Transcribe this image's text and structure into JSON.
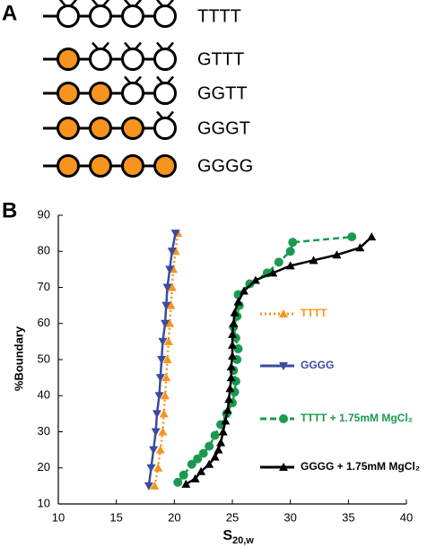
{
  "panel_a": {
    "label": "A",
    "rows": [
      {
        "label": "TTTT",
        "filled": [
          false,
          false,
          false,
          false
        ]
      },
      {
        "label": "GTTT",
        "filled": [
          true,
          false,
          false,
          false
        ]
      },
      {
        "label": "GGTT",
        "filled": [
          true,
          true,
          false,
          false
        ]
      },
      {
        "label": "GGGT",
        "filled": [
          true,
          true,
          true,
          false
        ]
      },
      {
        "label": "GGGG",
        "filled": [
          true,
          true,
          true,
          true
        ]
      }
    ],
    "fill_color": "#f7941d"
  },
  "panel_b": {
    "label": "B"
  },
  "chart_data": {
    "type": "line",
    "ylabel": "%Boundary",
    "xlabel": "S",
    "xlabel_sub": "20,w",
    "xlim": [
      10,
      40
    ],
    "xticks": [
      10,
      15,
      20,
      25,
      30,
      35,
      40
    ],
    "ylim": [
      10,
      90
    ],
    "yticks": [
      10,
      20,
      30,
      40,
      50,
      60,
      70,
      80,
      90
    ],
    "legend": "right",
    "series": [
      {
        "name": "TTTT",
        "color": "#f7941d",
        "marker": "triangle",
        "line": "dotted",
        "x": [
          18.3,
          18.6,
          18.8,
          19.0,
          19.1,
          19.2,
          19.3,
          19.4,
          19.5,
          19.6,
          19.7,
          19.8,
          19.9,
          20.1,
          20.3
        ],
        "values": [
          15,
          20,
          25,
          30,
          35,
          40,
          45,
          50,
          55,
          60,
          65,
          70,
          75,
          80,
          85
        ]
      },
      {
        "name": "GGGG",
        "color": "#3b4ba0",
        "marker": "triangle-down",
        "line": "solid",
        "x": [
          17.8,
          18.0,
          18.2,
          18.4,
          18.5,
          18.7,
          18.8,
          18.9,
          19.0,
          19.2,
          19.3,
          19.4,
          19.6,
          19.8,
          20.1
        ],
        "values": [
          15,
          20,
          25,
          30,
          35,
          40,
          45,
          50,
          55,
          60,
          65,
          70,
          75,
          80,
          85
        ]
      },
      {
        "name": "TTTT + 1.75mM MgCl₂",
        "color": "#1a9a50",
        "marker": "circle",
        "line": "dashed",
        "x": [
          20.3,
          20.8,
          21.5,
          22,
          22.5,
          23,
          23.5,
          24,
          24.5,
          25,
          25.2,
          25.3,
          25.1,
          25.4,
          25.5,
          25.3,
          25.1,
          25.4,
          25.6,
          25.5,
          26.5,
          28,
          29,
          30,
          30.2,
          35.3
        ],
        "values": [
          16,
          18,
          21,
          22.5,
          24,
          26,
          29,
          32,
          35,
          38,
          41,
          44,
          47,
          50,
          53,
          56,
          59,
          62,
          65,
          68,
          71,
          74,
          77,
          80,
          82.5,
          84
        ]
      },
      {
        "name": "GGGG + 1.75mM MgCl₂",
        "color": "#000000",
        "marker": "triangle",
        "line": "solid",
        "x": [
          21,
          21.8,
          22.3,
          23,
          23.5,
          23.8,
          24,
          24.2,
          24.4,
          24.6,
          24.7,
          24.8,
          24.9,
          24.9,
          25,
          25,
          25,
          25.1,
          25.2,
          25.5,
          26,
          27,
          28.5,
          30,
          32,
          34,
          36,
          37
        ],
        "values": [
          15.5,
          17,
          19,
          21,
          23,
          25,
          27,
          30,
          33,
          36,
          39,
          42,
          45,
          48,
          51,
          54,
          57,
          60,
          63,
          66,
          69,
          72,
          74,
          76,
          77.5,
          79,
          81,
          84
        ]
      }
    ]
  }
}
